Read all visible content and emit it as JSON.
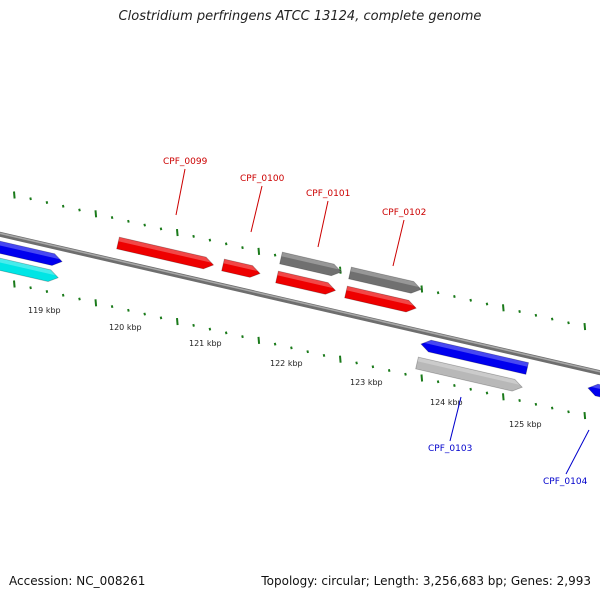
{
  "title": "Clostridium perfringens ATCC 13124, complete genome",
  "footer": {
    "accession": "Accession: NC_008261",
    "summary": "Topology: circular; Length: 3,256,683 bp; Genes: 2,993"
  },
  "colors": {
    "red_label": "#cc0000",
    "blue_label": "#0000cc",
    "backbone": "#808080",
    "tick": "#1a7a1a"
  },
  "scale_labels": [
    "119 kbp",
    "120 kbp",
    "121 kbp",
    "122 kbp",
    "123 kbp",
    "124 kbp",
    "125 kbp"
  ],
  "features": [
    {
      "id": "f1",
      "strand": "+",
      "color": "#0000ee"
    },
    {
      "id": "f2",
      "strand": "+",
      "color": "#00e5e5"
    },
    {
      "id": "f3",
      "strand": "+",
      "color": "#ee0000"
    },
    {
      "id": "f4",
      "strand": "+",
      "color": "#ee0000"
    },
    {
      "id": "f5",
      "strand": "+",
      "color": "#707070"
    },
    {
      "id": "f6",
      "strand": "+",
      "color": "#ee0000"
    },
    {
      "id": "f7",
      "strand": "+",
      "color": "#707070"
    },
    {
      "id": "f8",
      "strand": "+",
      "color": "#ee0000"
    },
    {
      "id": "f9",
      "strand": "-",
      "color": "#0000ee"
    },
    {
      "id": "f10",
      "strand": "+",
      "color": "#b8b8b8"
    },
    {
      "id": "f11",
      "strand": "-",
      "color": "#0000ee"
    }
  ],
  "gene_labels": [
    {
      "text": "CPF_0099",
      "color": "#cc0000"
    },
    {
      "text": "CPF_0100",
      "color": "#cc0000"
    },
    {
      "text": "CPF_0101",
      "color": "#cc0000"
    },
    {
      "text": "CPF_0102",
      "color": "#cc0000"
    },
    {
      "text": "CPF_0103",
      "color": "#0000cc"
    },
    {
      "text": "CPF_0104",
      "color": "#0000cc"
    }
  ]
}
